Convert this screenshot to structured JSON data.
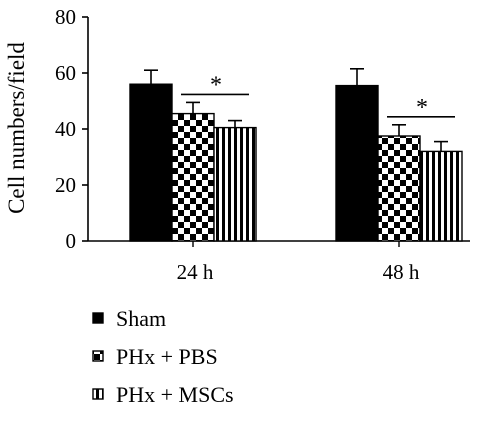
{
  "chart_data": {
    "type": "bar",
    "ylabel": "Cell numbers/field",
    "xlabel": "",
    "ylim": [
      0,
      80
    ],
    "yticks": [
      0,
      20,
      40,
      60,
      80
    ],
    "categories": [
      "24 h",
      "48 h"
    ],
    "series": [
      {
        "name": "Sham",
        "values": [
          56,
          55.5
        ],
        "errors": [
          5,
          6
        ],
        "pattern": "solid"
      },
      {
        "name": "PHx + PBS",
        "values": [
          45.5,
          37.5
        ],
        "errors": [
          4,
          4
        ],
        "pattern": "checker"
      },
      {
        "name": "PHx + MSCs",
        "values": [
          40.5,
          32
        ],
        "errors": [
          2.5,
          3.5
        ],
        "pattern": "vertical-stripes"
      }
    ],
    "annotations": [
      {
        "text": "*",
        "category": "24 h",
        "between": [
          "PHx + PBS",
          "PHx + MSCs"
        ]
      },
      {
        "text": "*",
        "category": "48 h",
        "between": [
          "PHx + PBS",
          "PHx + MSCs"
        ]
      }
    ],
    "grid": false,
    "legend": "bottom-left"
  },
  "colors": {
    "bar_fill": "#000000",
    "background": "#ffffff"
  }
}
